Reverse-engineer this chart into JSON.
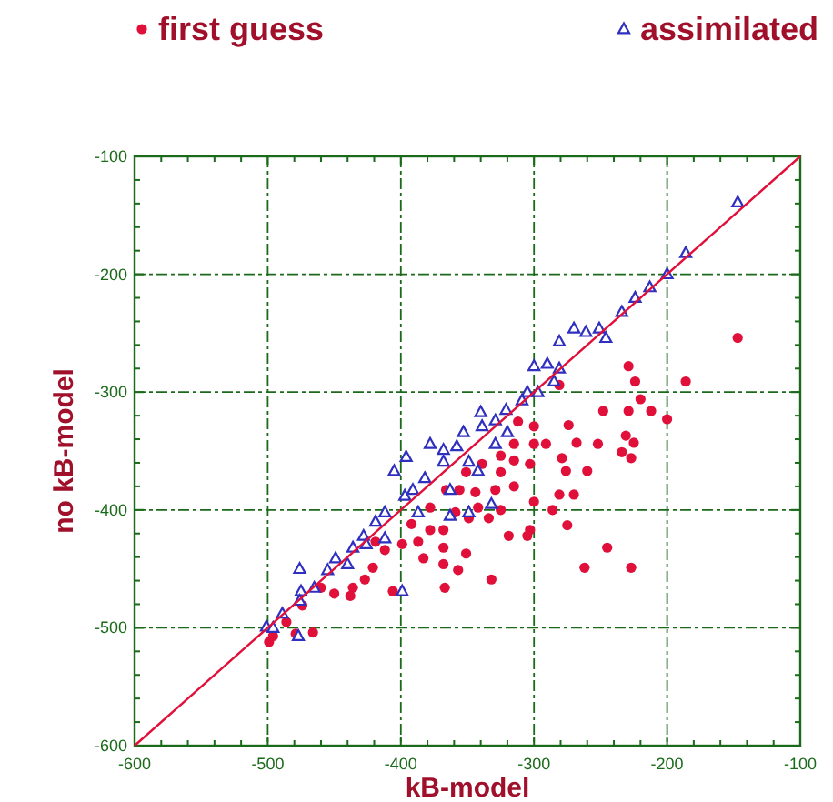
{
  "chart_data": {
    "type": "scatter",
    "xlabel": "kB-model",
    "ylabel": "no kB-model",
    "xlim": [
      -600,
      -100
    ],
    "ylim": [
      -600,
      -100
    ],
    "xticks": [
      -600,
      -500,
      -400,
      -300,
      -200,
      -100
    ],
    "yticks": [
      -600,
      -500,
      -400,
      -300,
      -200,
      -100
    ],
    "grid": true,
    "legend": "top",
    "series": [
      {
        "name": "first guess",
        "color": "#e0103a",
        "marker": "circle",
        "x": [
          -147,
          -229,
          -186,
          -224,
          -281,
          -220,
          -248,
          -229,
          -212,
          -200,
          -300,
          -274,
          -312,
          -268,
          -252,
          -231,
          -225,
          -291,
          -315,
          -234,
          -227,
          -279,
          -303,
          -276,
          -260,
          -325,
          -339,
          -351,
          -281,
          -270,
          -286,
          -300,
          -315,
          -329,
          -344,
          -356,
          -366,
          -275,
          -303,
          -305,
          -319,
          -334,
          -349,
          -359,
          -368,
          -378,
          -387,
          -399,
          -412,
          -419,
          -368,
          -351,
          -383,
          -368,
          -357,
          -245,
          -262,
          -227,
          -332,
          -367,
          -406,
          -427,
          -421,
          -436,
          -438,
          -450,
          -460,
          -474,
          -486,
          -479,
          -466,
          -499,
          -496,
          -392,
          -378,
          -342,
          -325,
          -315,
          -300,
          -325
        ],
        "values": [
          -254,
          -278,
          -291,
          -291,
          -294,
          -306,
          -316,
          -316,
          -316,
          -323,
          -329,
          -328,
          -325,
          -343,
          -344,
          -337,
          -343,
          -344,
          -344,
          -351,
          -356,
          -356,
          -361,
          -367,
          -367,
          -368,
          -361,
          -368,
          -387,
          -387,
          -400,
          -393,
          -380,
          -383,
          -385,
          -383,
          -383,
          -413,
          -417,
          -422,
          -422,
          -407,
          -407,
          -402,
          -417,
          -417,
          -427,
          -429,
          -434,
          -427,
          -432,
          -437,
          -441,
          -446,
          -451,
          -432,
          -449,
          -449,
          -459,
          -466,
          -469,
          -459,
          -449,
          -466,
          -473,
          -471,
          -466,
          -481,
          -495,
          -505,
          -504,
          -512,
          -507,
          -412,
          -398,
          -398,
          -400,
          -358,
          -344,
          -354
        ]
      },
      {
        "name": "assimilated",
        "color": "#3030c0",
        "marker": "triangle",
        "x": [
          -147,
          -186,
          -200,
          -213,
          -224,
          -234,
          -246,
          -251,
          -261,
          -270,
          -281,
          -290,
          -300,
          -285,
          -297,
          -309,
          -321,
          -340,
          -339,
          -353,
          -358,
          -378,
          -396,
          -405,
          -368,
          -329,
          -342,
          -382,
          -391,
          -397,
          -412,
          -419,
          -428,
          -436,
          -449,
          -455,
          -476,
          -465,
          -475,
          -476,
          -489,
          -501,
          -496,
          -477,
          -399,
          -363,
          -349,
          -332,
          -320,
          -305,
          -281,
          -329,
          -368,
          -349,
          -387,
          -412,
          -426,
          -440,
          -363
        ],
        "values": [
          -139,
          -182,
          -200,
          -211,
          -220,
          -232,
          -254,
          -246,
          -249,
          -246,
          -257,
          -276,
          -278,
          -291,
          -300,
          -307,
          -315,
          -317,
          -329,
          -334,
          -346,
          -344,
          -355,
          -367,
          -359,
          -344,
          -367,
          -373,
          -383,
          -388,
          -402,
          -410,
          -422,
          -432,
          -441,
          -451,
          -450,
          -466,
          -469,
          -477,
          -488,
          -499,
          -500,
          -507,
          -469,
          -405,
          -402,
          -395,
          -334,
          -300,
          -280,
          -324,
          -349,
          -359,
          -402,
          -424,
          -429,
          -446,
          -383
        ]
      },
      {
        "type": "line",
        "color": "#e0103a",
        "marker": "none",
        "x": [
          -600,
          -100
        ],
        "values": [
          -600,
          -100
        ]
      }
    ]
  }
}
